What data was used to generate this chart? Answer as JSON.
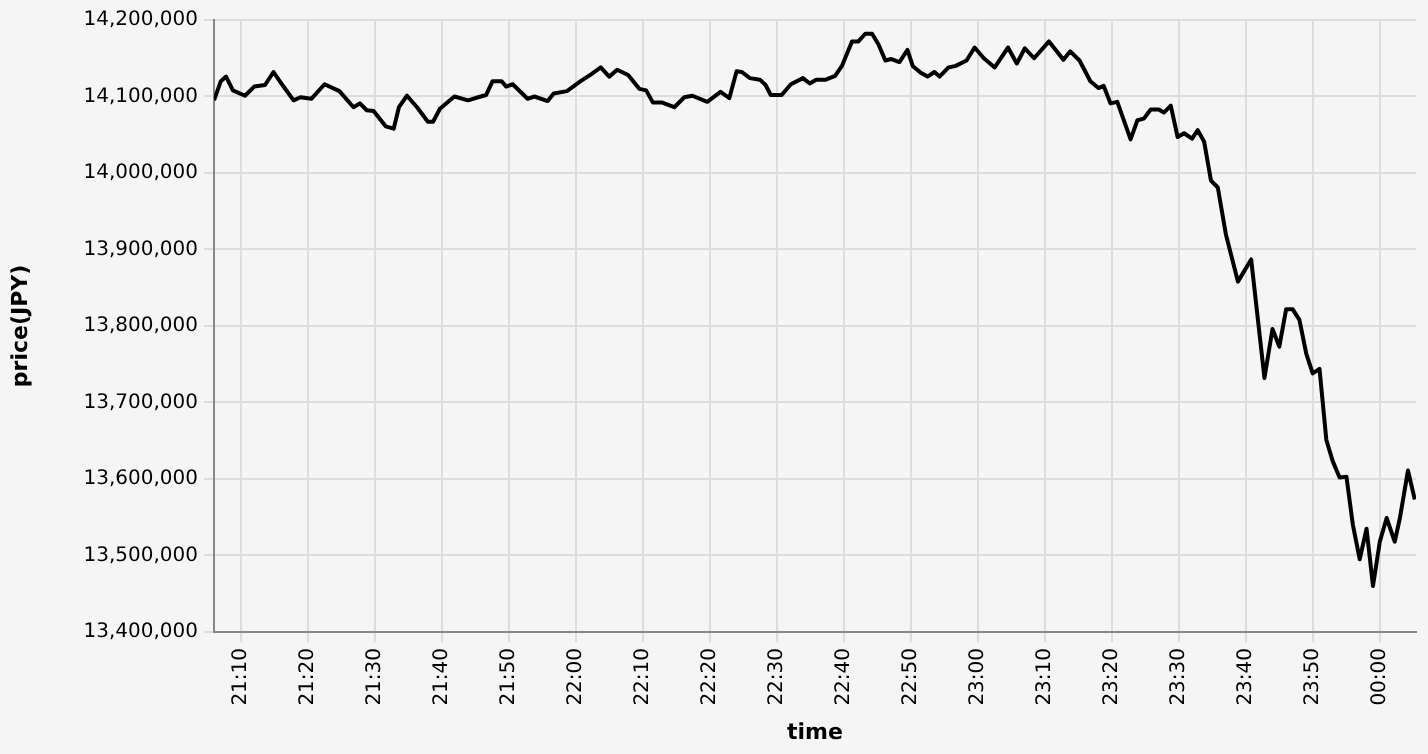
{
  "chart_data": {
    "type": "line",
    "xlabel": "time",
    "ylabel": "price(JPY)",
    "grid": true,
    "legend": false,
    "marker": "none",
    "line_style": "solid",
    "xlim": [
      21.1,
      24.09
    ],
    "ylim": [
      13400000,
      14200000
    ],
    "xticks": [
      {
        "value": 21.1667,
        "label": "21:10"
      },
      {
        "value": 21.3333,
        "label": "21:20"
      },
      {
        "value": 21.5,
        "label": "21:30"
      },
      {
        "value": 21.6667,
        "label": "21:40"
      },
      {
        "value": 21.8333,
        "label": "21:50"
      },
      {
        "value": 22,
        "label": "22:00"
      },
      {
        "value": 22.1667,
        "label": "22:10"
      },
      {
        "value": 22.3333,
        "label": "22:20"
      },
      {
        "value": 22.5,
        "label": "22:30"
      },
      {
        "value": 22.6667,
        "label": "22:40"
      },
      {
        "value": 22.8333,
        "label": "22:50"
      },
      {
        "value": 23,
        "label": "23:00"
      },
      {
        "value": 23.1667,
        "label": "23:10"
      },
      {
        "value": 23.3333,
        "label": "23:20"
      },
      {
        "value": 23.5,
        "label": "23:30"
      },
      {
        "value": 23.6667,
        "label": "23:40"
      },
      {
        "value": 23.8333,
        "label": "23:50"
      },
      {
        "value": 24,
        "label": "00:00"
      }
    ],
    "yticks": [
      {
        "value": 13400000,
        "label": "13,400,000"
      },
      {
        "value": 13500000,
        "label": "13,500,000"
      },
      {
        "value": 13600000,
        "label": "13,600,000"
      },
      {
        "value": 13700000,
        "label": "13,700,000"
      },
      {
        "value": 13800000,
        "label": "13,800,000"
      },
      {
        "value": 13900000,
        "label": "13,900,000"
      },
      {
        "value": 14000000,
        "label": "14,000,000"
      },
      {
        "value": 14100000,
        "label": "14,100,000"
      },
      {
        "value": 14200000,
        "label": "14,200,000"
      }
    ],
    "series": [
      {
        "color": "#000000",
        "x": [
          21.1,
          21.117,
          21.13,
          21.147,
          21.177,
          21.2,
          21.227,
          21.248,
          21.273,
          21.298,
          21.315,
          21.342,
          21.375,
          21.412,
          21.447,
          21.463,
          21.48,
          21.497,
          21.527,
          21.547,
          21.56,
          21.58,
          21.605,
          21.632,
          21.645,
          21.662,
          21.698,
          21.732,
          21.757,
          21.777,
          21.793,
          21.815,
          21.827,
          21.843,
          21.88,
          21.897,
          21.93,
          21.945,
          21.978,
          22.012,
          22.038,
          22.062,
          22.083,
          22.103,
          22.13,
          22.158,
          22.175,
          22.192,
          22.215,
          22.245,
          22.27,
          22.29,
          22.327,
          22.36,
          22.382,
          22.4,
          22.413,
          22.433,
          22.458,
          22.472,
          22.485,
          22.512,
          22.535,
          22.565,
          22.582,
          22.598,
          22.622,
          22.645,
          22.662,
          22.687,
          22.703,
          22.72,
          22.737,
          22.753,
          22.77,
          22.785,
          22.805,
          22.825,
          22.838,
          22.858,
          22.875,
          22.892,
          22.905,
          22.927,
          22.945,
          22.972,
          22.992,
          23.015,
          23.042,
          23.075,
          23.097,
          23.117,
          23.14,
          23.177,
          23.213,
          23.23,
          23.253,
          23.28,
          23.3,
          23.313,
          23.33,
          23.347,
          23.38,
          23.397,
          23.413,
          23.43,
          23.45,
          23.463,
          23.48,
          23.497,
          23.513,
          23.533,
          23.547,
          23.563,
          23.58,
          23.597,
          23.617,
          23.647,
          23.68,
          23.713,
          23.733,
          23.75,
          23.767,
          23.783,
          23.8,
          23.817,
          23.833,
          23.85,
          23.867,
          23.883,
          23.9,
          23.917,
          23.933,
          23.95,
          23.967,
          23.983,
          24.0,
          24.017,
          24.037,
          24.05,
          24.07,
          24.087
        ],
        "values": [
          14095000,
          14120000,
          14126000,
          14108000,
          14101000,
          14113000,
          14115000,
          14132000,
          14113000,
          14095000,
          14099000,
          14097000,
          14116000,
          14107000,
          14086000,
          14091000,
          14082000,
          14081000,
          14061000,
          14058000,
          14086000,
          14101000,
          14086000,
          14067000,
          14067000,
          14084000,
          14100000,
          14095000,
          14099000,
          14102000,
          14120000,
          14120000,
          14113000,
          14116000,
          14097000,
          14100000,
          14094000,
          14104000,
          14107000,
          14120000,
          14129000,
          14138000,
          14126000,
          14135000,
          14128000,
          14110000,
          14108000,
          14092000,
          14092000,
          14086000,
          14099000,
          14101000,
          14093000,
          14106000,
          14098000,
          14133000,
          14132000,
          14124000,
          14122000,
          14115000,
          14102000,
          14102000,
          14116000,
          14124000,
          14117000,
          14122000,
          14122000,
          14127000,
          14140000,
          14172000,
          14172000,
          14182000,
          14182000,
          14168000,
          14147000,
          14149000,
          14145000,
          14161000,
          14140000,
          14131000,
          14126000,
          14132000,
          14126000,
          14138000,
          14140000,
          14147000,
          14164000,
          14150000,
          14138000,
          14164000,
          14143000,
          14163000,
          14150000,
          14172000,
          14148000,
          14159000,
          14147000,
          14120000,
          14111000,
          14114000,
          14091000,
          14093000,
          14044000,
          14069000,
          14071000,
          14083000,
          14083000,
          14079000,
          14088000,
          14047000,
          14052000,
          14045000,
          14056000,
          14041000,
          13990000,
          13981000,
          13920000,
          13858000,
          13887000,
          13732000,
          13796000,
          13773000,
          13822000,
          13822000,
          13808000,
          13764000,
          13738000,
          13744000,
          13651000,
          13623000,
          13602000,
          13603000,
          13540000,
          13495000,
          13535000,
          13460000,
          13518000,
          13549000,
          13518000,
          13549000,
          13611000,
          13573000
        ]
      }
    ]
  }
}
